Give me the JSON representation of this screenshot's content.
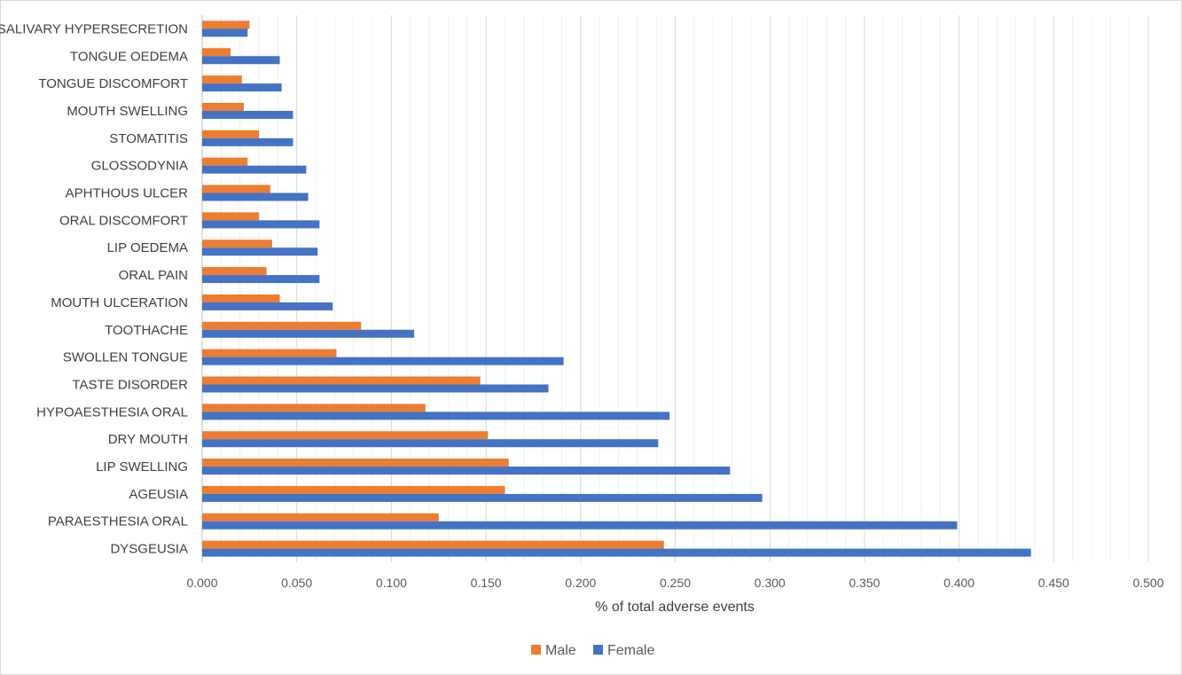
{
  "chart_data": {
    "type": "bar",
    "orientation": "horizontal",
    "title": "",
    "xlabel": "% of total adverse events",
    "ylabel": "",
    "xlim": [
      0,
      0.5
    ],
    "x_ticks": [
      "0.000",
      "0.050",
      "0.100",
      "0.150",
      "0.200",
      "0.250",
      "0.300",
      "0.350",
      "0.400",
      "0.450",
      "0.500"
    ],
    "grid": "vertical major and minor gridlines",
    "legend_position": "bottom",
    "categories": [
      "SALIVARY HYPERSECRETION",
      "TONGUE OEDEMA",
      "TONGUE DISCOMFORT",
      "MOUTH SWELLING",
      "STOMATITIS",
      "GLOSSODYNIA",
      "APHTHOUS ULCER",
      "ORAL DISCOMFORT",
      "LIP OEDEMA",
      "ORAL PAIN",
      "MOUTH ULCERATION",
      "TOOTHACHE",
      "SWOLLEN TONGUE",
      "TASTE DISORDER",
      "HYPOAESTHESIA ORAL",
      "DRY MOUTH",
      "LIP SWELLING",
      "AGEUSIA",
      "PARAESTHESIA ORAL",
      "DYSGEUSIA"
    ],
    "series": [
      {
        "name": "Male",
        "color": "#ED7D31",
        "values": [
          0.025,
          0.015,
          0.021,
          0.022,
          0.03,
          0.024,
          0.036,
          0.03,
          0.037,
          0.034,
          0.041,
          0.084,
          0.071,
          0.147,
          0.118,
          0.151,
          0.162,
          0.16,
          0.125,
          0.244
        ]
      },
      {
        "name": "Female",
        "color": "#4472C4",
        "values": [
          0.024,
          0.041,
          0.042,
          0.048,
          0.048,
          0.055,
          0.056,
          0.062,
          0.061,
          0.062,
          0.069,
          0.112,
          0.191,
          0.183,
          0.247,
          0.241,
          0.279,
          0.296,
          0.399,
          0.438
        ]
      }
    ]
  }
}
